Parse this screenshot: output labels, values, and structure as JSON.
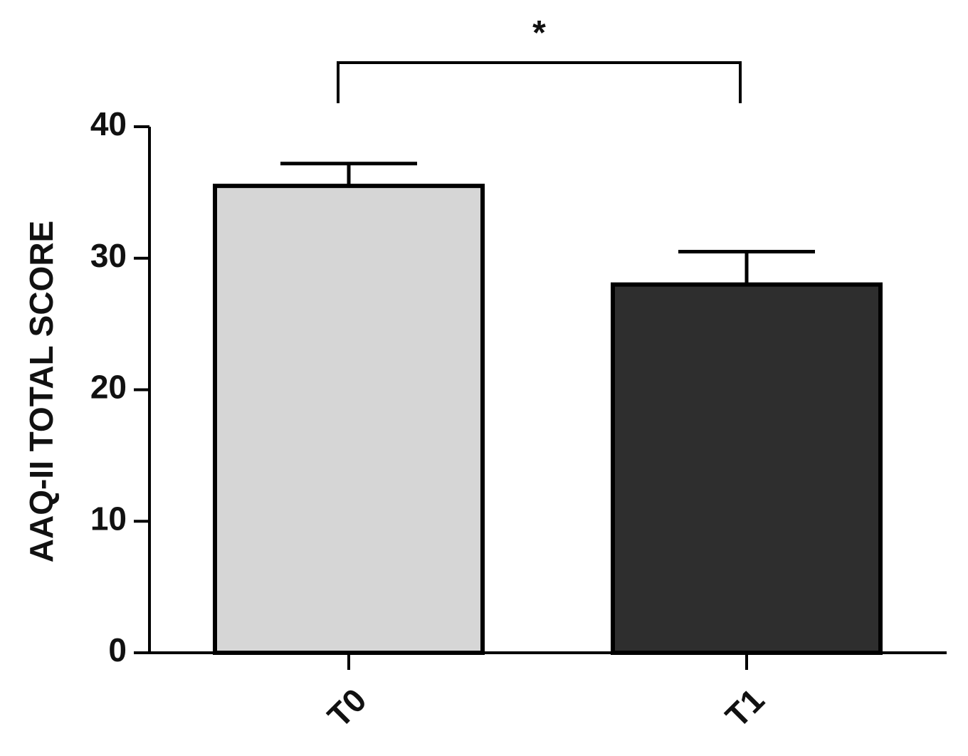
{
  "chart_data": {
    "type": "bar",
    "y_label": "AAQ-II TOTAL SCORE",
    "categories": [
      "T0",
      "T1"
    ],
    "values": [
      35.5,
      28.0
    ],
    "errors": [
      1.7,
      2.5
    ],
    "colors": [
      "#d6d6d6",
      "#2e2e2e"
    ],
    "ylim": [
      0,
      40
    ],
    "yticks": [
      0,
      10,
      20,
      30,
      40
    ],
    "annotation": "*"
  }
}
